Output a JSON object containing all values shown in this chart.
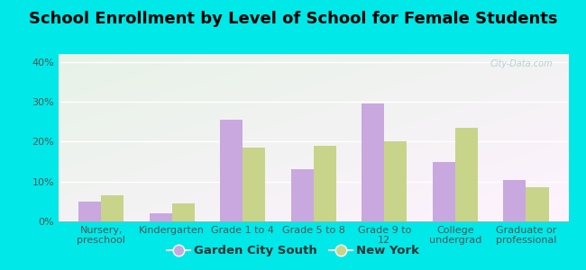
{
  "title": "School Enrollment by Level of School for Female Students",
  "categories": [
    "Nursery,\npreschool",
    "Kindergarten",
    "Grade 1 to 4",
    "Grade 5 to 8",
    "Grade 9 to\n12",
    "College\nundergrad",
    "Graduate or\nprofessional"
  ],
  "garden_city_south": [
    5.0,
    2.0,
    25.5,
    13.0,
    29.5,
    15.0,
    10.5
  ],
  "new_york": [
    6.5,
    4.5,
    18.5,
    19.0,
    20.0,
    23.5,
    8.5
  ],
  "bar_color_gcs": "#c9a8e0",
  "bar_color_ny": "#c8d48a",
  "background_outer": "#00e8e8",
  "ylim": [
    0,
    42
  ],
  "yticks": [
    0,
    10,
    20,
    30,
    40
  ],
  "ytick_labels": [
    "0%",
    "10%",
    "20%",
    "30%",
    "40%"
  ],
  "legend_label_gcs": "Garden City South",
  "legend_label_ny": "New York",
  "title_fontsize": 13,
  "tick_fontsize": 8,
  "legend_fontsize": 9.5
}
